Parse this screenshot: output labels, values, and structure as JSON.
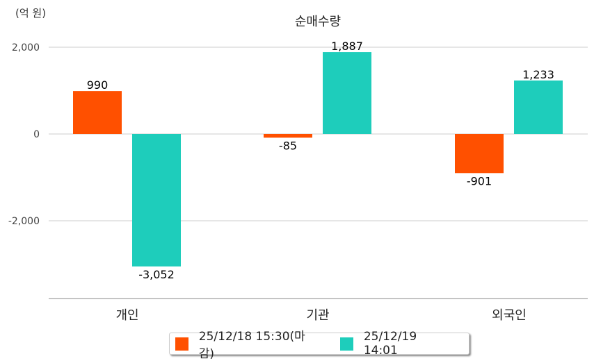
{
  "chart_data": {
    "type": "bar",
    "title": "순매수량",
    "unit_label": "(억 원)",
    "xlabel": "",
    "ylabel": "",
    "categories": [
      "개인",
      "기관",
      "외국인"
    ],
    "series": [
      {
        "name": "25/12/18 15:30(마감)",
        "color": "#ff5000",
        "values": [
          990,
          -85,
          -901
        ],
        "labels": [
          "990",
          "-85",
          "-901"
        ]
      },
      {
        "name": "25/12/19 14:01",
        "color": "#1ecdbb",
        "values": [
          -3052,
          1887,
          1233
        ],
        "labels": [
          "-3,052",
          "1,887",
          "1,233"
        ]
      }
    ],
    "yticks": [
      2000,
      0,
      -2000
    ],
    "ytick_labels": [
      "2,000",
      "0",
      "-2,000"
    ],
    "ylim": [
      -3790,
      2000
    ],
    "grid": true,
    "legend_position": "bottom"
  }
}
